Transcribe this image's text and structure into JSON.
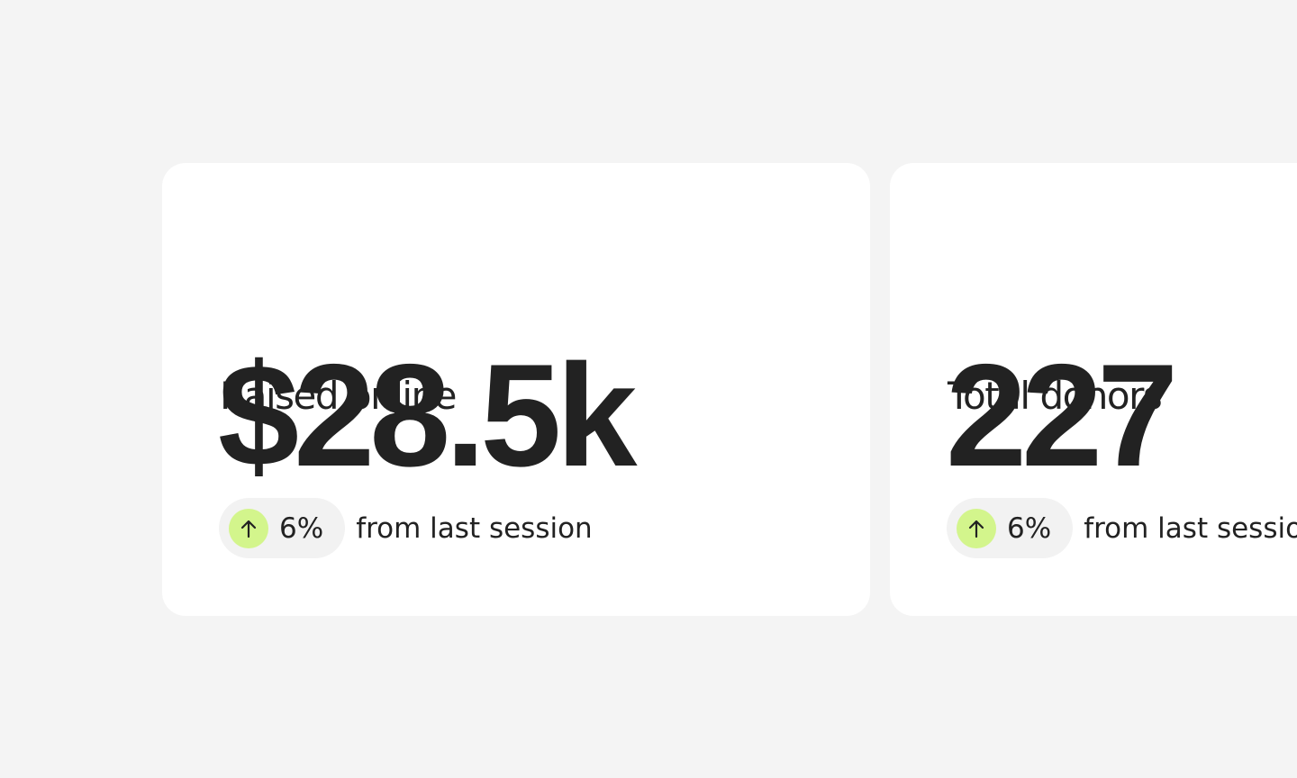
{
  "cards": [
    {
      "label": "Raised online",
      "value": "$28.5k",
      "change": "6%",
      "note": "from last session"
    },
    {
      "label": "Total donors",
      "value": "227",
      "change": "6%",
      "note": "from last session"
    }
  ]
}
